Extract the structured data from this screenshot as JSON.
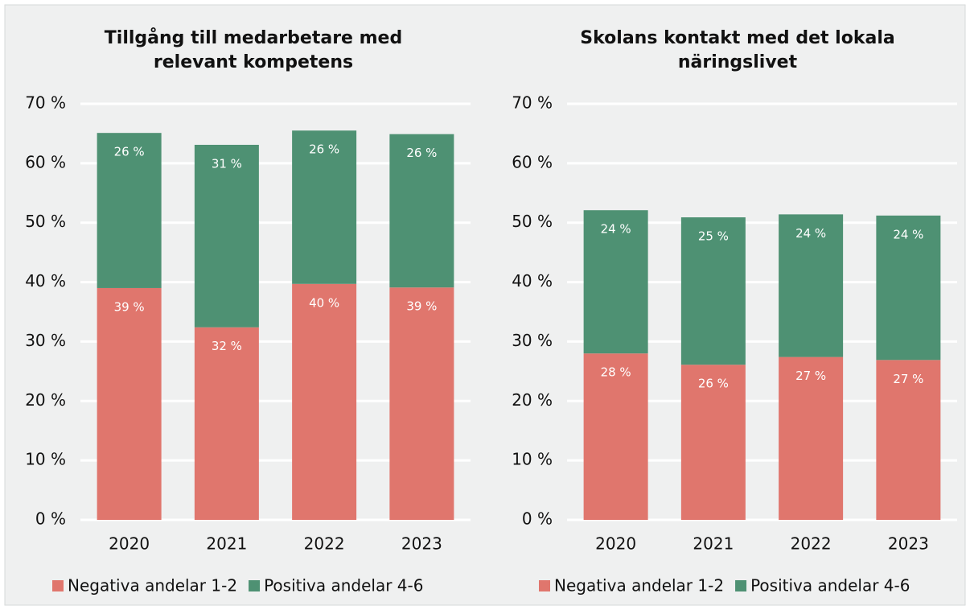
{
  "chart_data": [
    {
      "type": "stacked_bar",
      "title": "Tillgång till medarbetare med relevant kompetens",
      "categories": [
        "2020",
        "2021",
        "2022",
        "2023"
      ],
      "series": [
        {
          "name": "Negativa andelar 1-2",
          "color": "#e0766d",
          "values": [
            39.0,
            32.4,
            39.7,
            39.1
          ],
          "value_labels": [
            "39 %",
            "32 %",
            "40 %",
            "39 %"
          ]
        },
        {
          "name": "Positiva andelar 4-6",
          "color": "#4e9173",
          "values": [
            26.1,
            30.7,
            25.8,
            25.8
          ],
          "value_labels": [
            "26 %",
            "31 %",
            "26 %",
            "26 %"
          ]
        }
      ],
      "ylim": [
        0,
        70
      ],
      "yticks": [
        {
          "value": 0,
          "label": "0 %"
        },
        {
          "value": 10,
          "label": "10 %"
        },
        {
          "value": 20,
          "label": "20 %"
        },
        {
          "value": 30,
          "label": "30 %"
        },
        {
          "value": 40,
          "label": "40 %"
        },
        {
          "value": 50,
          "label": "50 %"
        },
        {
          "value": 60,
          "label": "60 %"
        },
        {
          "value": 70,
          "label": "70 %"
        }
      ],
      "grid": true,
      "legend": "bottom"
    },
    {
      "type": "stacked_bar",
      "title": "Skolans kontakt med det lokala näringslivet",
      "categories": [
        "2020",
        "2021",
        "2022",
        "2023"
      ],
      "series": [
        {
          "name": "Negativa andelar 1-2",
          "color": "#e0766d",
          "values": [
            28.0,
            26.1,
            27.4,
            26.9
          ],
          "value_labels": [
            "28 %",
            "26 %",
            "27 %",
            "27 %"
          ]
        },
        {
          "name": "Positiva andelar 4-6",
          "color": "#4e9173",
          "values": [
            24.1,
            24.8,
            24.0,
            24.3
          ],
          "value_labels": [
            "24 %",
            "25 %",
            "24 %",
            "24 %"
          ]
        }
      ],
      "ylim": [
        0,
        70
      ],
      "yticks": [
        {
          "value": 0,
          "label": "0 %"
        },
        {
          "value": 10,
          "label": "10 %"
        },
        {
          "value": 20,
          "label": "20 %"
        },
        {
          "value": 30,
          "label": "30 %"
        },
        {
          "value": 40,
          "label": "40 %"
        },
        {
          "value": 50,
          "label": "50 %"
        },
        {
          "value": 60,
          "label": "60 %"
        },
        {
          "value": 70,
          "label": "70 %"
        }
      ],
      "grid": true,
      "legend": "bottom"
    }
  ]
}
